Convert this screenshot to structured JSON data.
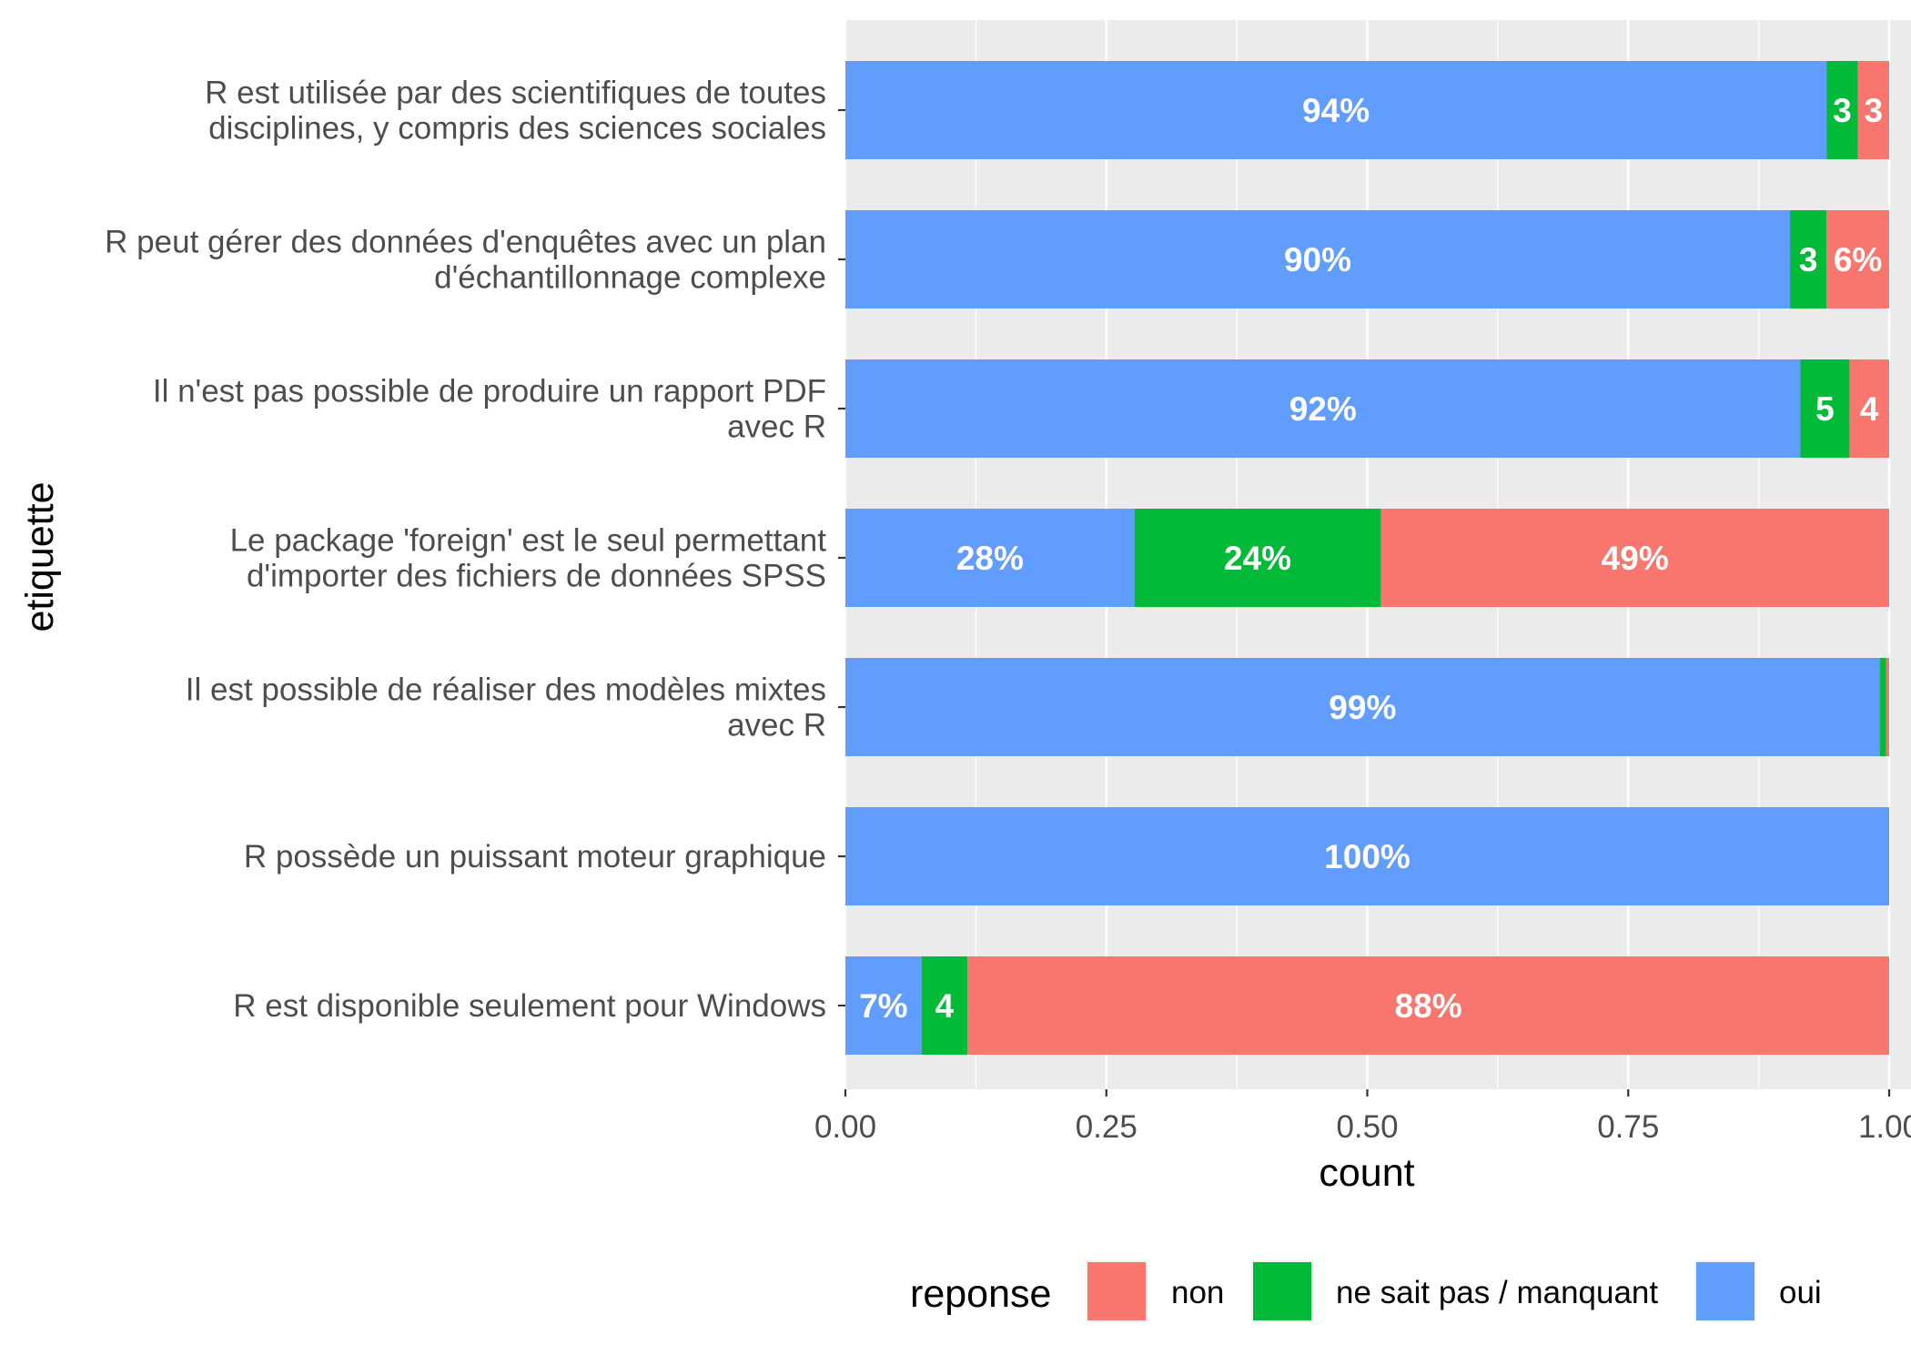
{
  "chart_data": {
    "type": "bar",
    "orientation": "horizontal",
    "stacked": true,
    "xlabel": "count",
    "ylabel": "etiquette",
    "xlim": [
      0,
      1
    ],
    "x_ticks": [
      "0.00",
      "0.25",
      "0.50",
      "0.75",
      "1.00"
    ],
    "x_tick_values": [
      0,
      0.25,
      0.5,
      0.75,
      1
    ],
    "grid": true,
    "legend_position": "bottom",
    "legend": {
      "title": "reponse",
      "entries": [
        {
          "key": "non",
          "label": "non",
          "color": "#F8766D"
        },
        {
          "key": "nsp",
          "label": "ne sait pas / manquant",
          "color": "#00BA38"
        },
        {
          "key": "oui",
          "label": "oui",
          "color": "#619CFF"
        }
      ]
    },
    "stack_order": [
      "oui",
      "nsp",
      "non"
    ],
    "categories": [
      {
        "lines": [
          "R est utilisée par des scientifiques de toutes",
          "disciplines, y compris des sciences sociales"
        ],
        "values": {
          "oui": 0.94,
          "nsp": 0.03,
          "non": 0.03
        },
        "labels": {
          "oui": "94%",
          "nsp": "3",
          "non": "3"
        }
      },
      {
        "lines": [
          "R peut gérer des données d'enquêtes avec un plan",
          "d'échantillonnage complexe"
        ],
        "values": {
          "oui": 0.905,
          "nsp": 0.035,
          "non": 0.06
        },
        "labels": {
          "oui": "90%",
          "nsp": "3",
          "non": "6%"
        }
      },
      {
        "lines": [
          "Il n'est pas possible de produire un rapport PDF",
          "avec R"
        ],
        "values": {
          "oui": 0.915,
          "nsp": 0.047,
          "non": 0.038
        },
        "labels": {
          "oui": "92%",
          "nsp": "5",
          "non": "4"
        }
      },
      {
        "lines": [
          "Le package 'foreign' est le seul permettant",
          "d'importer des fichiers de données SPSS"
        ],
        "values": {
          "oui": 0.277,
          "nsp": 0.236,
          "non": 0.487
        },
        "labels": {
          "oui": "28%",
          "nsp": "24%",
          "non": "49%"
        }
      },
      {
        "lines": [
          "Il est possible de réaliser des modèles mixtes",
          "avec R"
        ],
        "values": {
          "oui": 0.991,
          "nsp": 0.006,
          "non": 0.003
        },
        "labels": {
          "oui": "99%",
          "nsp": "",
          "non": ""
        }
      },
      {
        "lines": [
          "R possède un puissant moteur graphique"
        ],
        "values": {
          "oui": 1.0,
          "nsp": 0.0,
          "non": 0.0
        },
        "labels": {
          "oui": "100%",
          "nsp": "",
          "non": ""
        }
      },
      {
        "lines": [
          "R est disponible seulement pour Windows"
        ],
        "values": {
          "oui": 0.073,
          "nsp": 0.044,
          "non": 0.883
        },
        "labels": {
          "oui": "7%",
          "nsp": "4",
          "non": "88%"
        }
      }
    ]
  }
}
